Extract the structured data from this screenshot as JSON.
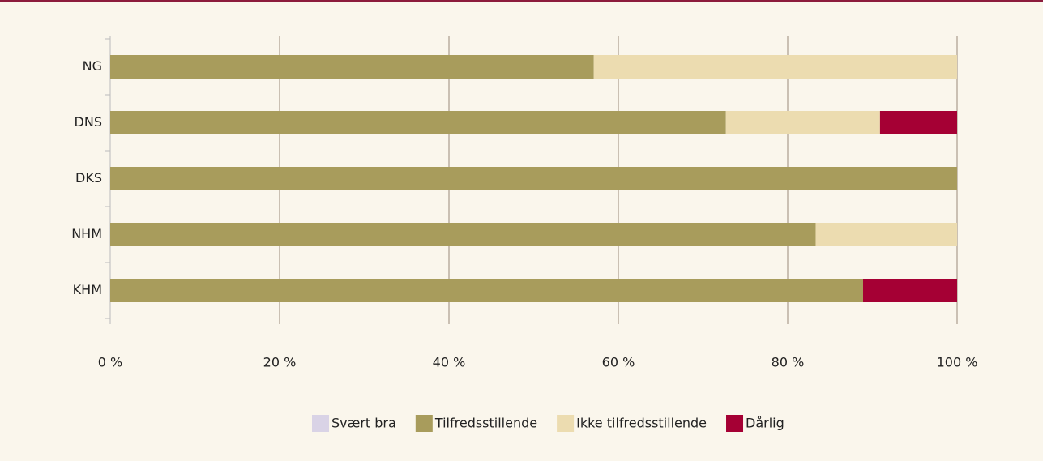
{
  "chart_data": {
    "type": "bar",
    "orientation": "horizontal",
    "stacked": true,
    "categories": [
      "NG",
      "DNS",
      "DKS",
      "NHM",
      "KHM"
    ],
    "series": [
      {
        "name": "Svært bra",
        "color": "#d9d3e6",
        "values": [
          0,
          0,
          0,
          0,
          0
        ]
      },
      {
        "name": "Tilfredsstillende",
        "color": "#a89c5c",
        "values": [
          57.1,
          72.7,
          100,
          83.3,
          88.9
        ]
      },
      {
        "name": "Ikke tilfredsstillende",
        "color": "#ecdcb0",
        "values": [
          42.9,
          18.2,
          0,
          16.7,
          0
        ]
      },
      {
        "name": "Dårlig",
        "color": "#a50034",
        "values": [
          0,
          9.1,
          0,
          0,
          11.1
        ]
      }
    ],
    "xlim": [
      0,
      100
    ],
    "xticks": [
      {
        "value": 0,
        "label": "0 %"
      },
      {
        "value": 20,
        "label": "20 %"
      },
      {
        "value": 40,
        "label": "40 %"
      },
      {
        "value": 60,
        "label": "60 %"
      },
      {
        "value": 80,
        "label": "80 %"
      },
      {
        "value": 100,
        "label": "100 %"
      }
    ],
    "grid": true,
    "legend": "bottom"
  }
}
